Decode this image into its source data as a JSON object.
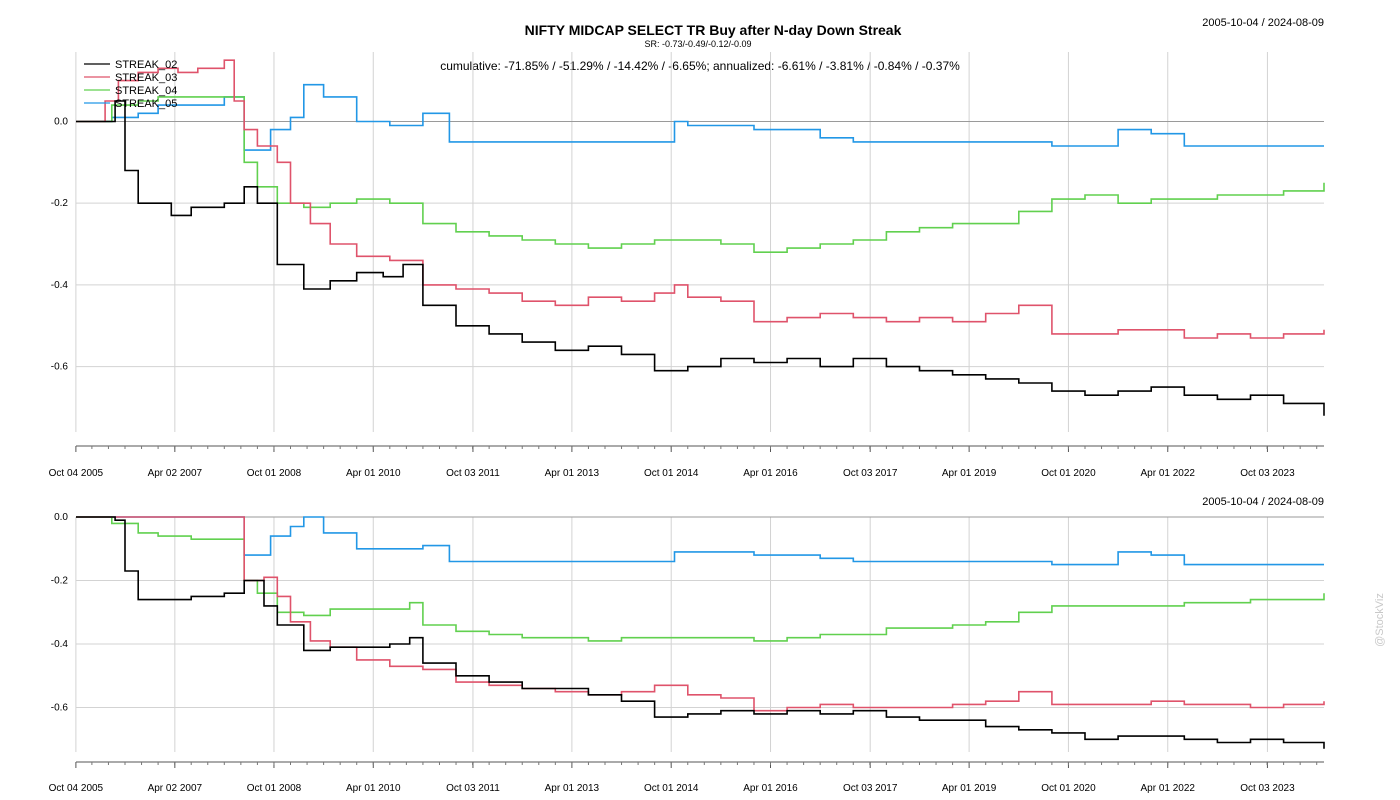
{
  "chart_data": [
    {
      "type": "line",
      "title": "NIFTY MIDCAP SELECT TR Buy after N-day Down Streak",
      "subtitle": "SR: -0.73/-0.49/-0.12/-0.09",
      "annotation": "cumulative: -71.85% / -51.29% / -14.42% / -6.65%; annualized: -6.61% / -3.81% / -0.84% / -0.37%",
      "date_range": "2005-10-04 / 2024-08-09",
      "x_ticks": [
        "Oct 04 2005",
        "Apr 02 2007",
        "Oct 01 2008",
        "Apr 01 2010",
        "Oct 03 2011",
        "Apr 01 2013",
        "Oct 01 2014",
        "Apr 01 2016",
        "Oct 03 2017",
        "Apr 01 2019",
        "Oct 01 2020",
        "Apr 01 2022",
        "Oct 03 2023"
      ],
      "y_ticks": [
        "0.0",
        "-0.2",
        "-0.4",
        "-0.6"
      ],
      "ylim": [
        -0.76,
        0.17
      ],
      "xlim": [
        2005.76,
        2024.61
      ],
      "grid": true,
      "legend_position": "top-left",
      "series": [
        {
          "name": "STREAK_02",
          "color": "#000000",
          "x": [
            2005.76,
            2006.2,
            2006.35,
            2006.5,
            2006.7,
            2007.0,
            2007.2,
            2007.5,
            2008.0,
            2008.3,
            2008.5,
            2008.8,
            2009.2,
            2009.6,
            2010.0,
            2010.4,
            2010.7,
            2011.0,
            2011.5,
            2012.0,
            2012.5,
            2013.0,
            2013.5,
            2014.0,
            2014.5,
            2015.0,
            2015.5,
            2016.0,
            2016.5,
            2017.0,
            2017.5,
            2018.0,
            2018.5,
            2019.0,
            2019.5,
            2020.0,
            2020.5,
            2021.0,
            2021.5,
            2022.0,
            2022.5,
            2023.0,
            2023.5,
            2024.0,
            2024.61
          ],
          "values": [
            0.0,
            0.0,
            0.05,
            -0.12,
            -0.2,
            -0.2,
            -0.23,
            -0.21,
            -0.2,
            -0.16,
            -0.2,
            -0.35,
            -0.41,
            -0.39,
            -0.37,
            -0.38,
            -0.35,
            -0.45,
            -0.5,
            -0.52,
            -0.54,
            -0.56,
            -0.55,
            -0.57,
            -0.61,
            -0.6,
            -0.58,
            -0.59,
            -0.58,
            -0.6,
            -0.58,
            -0.6,
            -0.61,
            -0.62,
            -0.63,
            -0.64,
            -0.66,
            -0.67,
            -0.66,
            -0.65,
            -0.67,
            -0.68,
            -0.67,
            -0.69,
            -0.72
          ]
        },
        {
          "name": "STREAK_03",
          "color": "#df536b",
          "x": [
            2005.76,
            2006.2,
            2006.4,
            2006.7,
            2007.0,
            2007.3,
            2007.6,
            2008.0,
            2008.15,
            2008.3,
            2008.5,
            2008.8,
            2009.0,
            2009.3,
            2009.6,
            2010.0,
            2010.5,
            2010.8,
            2011.0,
            2011.5,
            2012.0,
            2012.5,
            2013.0,
            2013.5,
            2014.0,
            2014.5,
            2014.8,
            2015.0,
            2015.5,
            2016.0,
            2016.5,
            2017.0,
            2017.5,
            2018.0,
            2018.5,
            2019.0,
            2019.5,
            2020.0,
            2020.5,
            2021.0,
            2021.5,
            2022.0,
            2022.5,
            2023.0,
            2023.5,
            2024.0,
            2024.61
          ],
          "values": [
            0.0,
            0.05,
            0.1,
            0.12,
            0.13,
            0.12,
            0.13,
            0.15,
            0.05,
            -0.02,
            -0.06,
            -0.1,
            -0.2,
            -0.25,
            -0.3,
            -0.33,
            -0.34,
            -0.34,
            -0.4,
            -0.41,
            -0.42,
            -0.44,
            -0.45,
            -0.43,
            -0.44,
            -0.42,
            -0.4,
            -0.43,
            -0.44,
            -0.49,
            -0.48,
            -0.47,
            -0.48,
            -0.49,
            -0.48,
            -0.49,
            -0.47,
            -0.45,
            -0.52,
            -0.52,
            -0.51,
            -0.51,
            -0.53,
            -0.52,
            -0.53,
            -0.52,
            -0.51
          ]
        },
        {
          "name": "STREAK_04",
          "color": "#61d04f",
          "x": [
            2005.76,
            2006.3,
            2006.7,
            2007.0,
            2007.5,
            2008.0,
            2008.3,
            2008.5,
            2008.8,
            2009.2,
            2009.6,
            2010.0,
            2010.5,
            2010.8,
            2011.0,
            2011.5,
            2012.0,
            2012.5,
            2013.0,
            2013.5,
            2014.0,
            2014.5,
            2015.0,
            2015.5,
            2016.0,
            2016.5,
            2017.0,
            2017.5,
            2018.0,
            2018.5,
            2019.0,
            2019.5,
            2020.0,
            2020.5,
            2021.0,
            2021.5,
            2022.0,
            2022.5,
            2023.0,
            2023.5,
            2024.0,
            2024.61
          ],
          "values": [
            0.0,
            0.04,
            0.05,
            0.06,
            0.06,
            0.06,
            -0.1,
            -0.16,
            -0.2,
            -0.21,
            -0.2,
            -0.19,
            -0.2,
            -0.2,
            -0.25,
            -0.27,
            -0.28,
            -0.29,
            -0.3,
            -0.31,
            -0.3,
            -0.29,
            -0.29,
            -0.3,
            -0.32,
            -0.31,
            -0.3,
            -0.29,
            -0.27,
            -0.26,
            -0.25,
            -0.25,
            -0.22,
            -0.19,
            -0.18,
            -0.2,
            -0.19,
            -0.19,
            -0.18,
            -0.18,
            -0.17,
            -0.15
          ]
        },
        {
          "name": "STREAK_05",
          "color": "#2297e6",
          "x": [
            2005.76,
            2006.3,
            2006.7,
            2007.0,
            2007.5,
            2008.0,
            2008.3,
            2008.7,
            2009.0,
            2009.2,
            2009.5,
            2010.0,
            2010.5,
            2011.0,
            2011.4,
            2011.8,
            2012.0,
            2012.5,
            2013.0,
            2013.5,
            2014.0,
            2014.3,
            2014.8,
            2015.0,
            2015.5,
            2016.0,
            2016.5,
            2017.0,
            2017.5,
            2018.0,
            2018.5,
            2019.0,
            2019.5,
            2020.0,
            2020.5,
            2021.0,
            2021.5,
            2022.0,
            2022.5,
            2023.0,
            2023.5,
            2024.0,
            2024.61
          ],
          "values": [
            0.0,
            0.01,
            0.02,
            0.04,
            0.04,
            0.06,
            -0.07,
            -0.02,
            0.01,
            0.09,
            0.06,
            0.0,
            -0.01,
            0.02,
            -0.05,
            -0.05,
            -0.05,
            -0.05,
            -0.05,
            -0.05,
            -0.05,
            -0.05,
            0.0,
            -0.01,
            -0.01,
            -0.02,
            -0.02,
            -0.04,
            -0.05,
            -0.05,
            -0.05,
            -0.05,
            -0.05,
            -0.05,
            -0.06,
            -0.06,
            -0.02,
            -0.03,
            -0.06,
            -0.06,
            -0.06,
            -0.06,
            -0.06
          ]
        }
      ]
    },
    {
      "type": "line",
      "date_range": "2005-10-04 / 2024-08-09",
      "x_ticks": [
        "Oct 04 2005",
        "Apr 02 2007",
        "Oct 01 2008",
        "Apr 01 2010",
        "Oct 03 2011",
        "Apr 01 2013",
        "Oct 01 2014",
        "Apr 01 2016",
        "Oct 03 2017",
        "Apr 01 2019",
        "Oct 01 2020",
        "Apr 01 2022",
        "Oct 03 2023"
      ],
      "y_ticks": [
        "0.0",
        "-0.2",
        "-0.4",
        "-0.6"
      ],
      "ylim": [
        -0.74,
        0.0
      ],
      "xlim": [
        2005.76,
        2024.61
      ],
      "grid": true,
      "series": [
        {
          "name": "STREAK_02",
          "color": "#000000",
          "x": [
            2005.76,
            2006.2,
            2006.35,
            2006.5,
            2006.7,
            2007.0,
            2007.5,
            2008.0,
            2008.3,
            2008.6,
            2008.8,
            2009.2,
            2009.6,
            2010.0,
            2010.5,
            2010.8,
            2011.0,
            2011.5,
            2012.0,
            2012.5,
            2013.0,
            2013.5,
            2014.0,
            2014.5,
            2015.0,
            2015.5,
            2016.0,
            2016.5,
            2017.0,
            2017.5,
            2018.0,
            2018.5,
            2019.0,
            2019.5,
            2020.0,
            2020.5,
            2021.0,
            2021.5,
            2022.0,
            2022.5,
            2023.0,
            2023.5,
            2024.0,
            2024.61
          ],
          "values": [
            0.0,
            0.0,
            -0.01,
            -0.17,
            -0.26,
            -0.26,
            -0.25,
            -0.24,
            -0.2,
            -0.28,
            -0.34,
            -0.42,
            -0.41,
            -0.41,
            -0.4,
            -0.38,
            -0.46,
            -0.5,
            -0.52,
            -0.54,
            -0.54,
            -0.56,
            -0.58,
            -0.63,
            -0.62,
            -0.61,
            -0.62,
            -0.61,
            -0.62,
            -0.61,
            -0.63,
            -0.64,
            -0.64,
            -0.66,
            -0.67,
            -0.68,
            -0.7,
            -0.69,
            -0.69,
            -0.7,
            -0.71,
            -0.7,
            -0.71,
            -0.73
          ]
        },
        {
          "name": "STREAK_03",
          "color": "#df536b",
          "x": [
            2005.76,
            2006.3,
            2006.7,
            2007.0,
            2007.5,
            2008.0,
            2008.3,
            2008.6,
            2008.8,
            2009.0,
            2009.3,
            2009.6,
            2010.0,
            2010.5,
            2010.8,
            2011.0,
            2011.5,
            2012.0,
            2012.5,
            2013.0,
            2013.5,
            2014.0,
            2014.5,
            2015.0,
            2015.5,
            2016.0,
            2016.5,
            2017.0,
            2017.5,
            2018.0,
            2018.5,
            2019.0,
            2019.5,
            2020.0,
            2020.5,
            2021.0,
            2021.5,
            2022.0,
            2022.5,
            2023.0,
            2023.5,
            2024.0,
            2024.61
          ],
          "values": [
            0.0,
            0.0,
            0.0,
            0.0,
            0.0,
            0.0,
            -0.2,
            -0.19,
            -0.25,
            -0.33,
            -0.39,
            -0.41,
            -0.45,
            -0.47,
            -0.47,
            -0.48,
            -0.52,
            -0.53,
            -0.54,
            -0.55,
            -0.56,
            -0.55,
            -0.53,
            -0.56,
            -0.57,
            -0.61,
            -0.6,
            -0.59,
            -0.6,
            -0.6,
            -0.6,
            -0.59,
            -0.58,
            -0.55,
            -0.59,
            -0.59,
            -0.59,
            -0.58,
            -0.59,
            -0.59,
            -0.6,
            -0.59,
            -0.58
          ]
        },
        {
          "name": "STREAK_04",
          "color": "#61d04f",
          "x": [
            2005.76,
            2006.3,
            2006.7,
            2007.0,
            2007.5,
            2008.0,
            2008.3,
            2008.5,
            2008.8,
            2009.2,
            2009.6,
            2010.0,
            2010.5,
            2010.8,
            2011.0,
            2011.5,
            2012.0,
            2012.5,
            2013.0,
            2013.5,
            2014.0,
            2014.5,
            2015.0,
            2015.5,
            2016.0,
            2016.5,
            2017.0,
            2017.5,
            2018.0,
            2018.5,
            2019.0,
            2019.5,
            2020.0,
            2020.5,
            2021.0,
            2021.5,
            2022.0,
            2022.5,
            2023.0,
            2023.5,
            2024.0,
            2024.61
          ],
          "values": [
            0.0,
            -0.02,
            -0.05,
            -0.06,
            -0.07,
            -0.07,
            -0.2,
            -0.24,
            -0.3,
            -0.31,
            -0.29,
            -0.29,
            -0.29,
            -0.27,
            -0.34,
            -0.36,
            -0.37,
            -0.38,
            -0.38,
            -0.39,
            -0.38,
            -0.38,
            -0.38,
            -0.38,
            -0.39,
            -0.38,
            -0.37,
            -0.37,
            -0.35,
            -0.35,
            -0.34,
            -0.33,
            -0.3,
            -0.28,
            -0.28,
            -0.28,
            -0.28,
            -0.27,
            -0.27,
            -0.26,
            -0.26,
            -0.24
          ]
        },
        {
          "name": "STREAK_05",
          "color": "#2297e6",
          "x": [
            2005.76,
            2006.3,
            2006.7,
            2007.0,
            2007.5,
            2008.0,
            2008.3,
            2008.7,
            2009.0,
            2009.2,
            2009.5,
            2010.0,
            2010.5,
            2011.0,
            2011.4,
            2011.8,
            2012.0,
            2012.5,
            2013.0,
            2013.5,
            2014.0,
            2014.3,
            2014.8,
            2015.0,
            2015.5,
            2016.0,
            2016.5,
            2017.0,
            2017.5,
            2018.0,
            2018.5,
            2019.0,
            2019.5,
            2020.0,
            2020.5,
            2021.0,
            2021.5,
            2022.0,
            2022.5,
            2023.0,
            2023.5,
            2024.0,
            2024.61
          ],
          "values": [
            0.0,
            0.0,
            0.0,
            0.0,
            0.0,
            0.0,
            -0.12,
            -0.06,
            -0.03,
            0.0,
            -0.05,
            -0.1,
            -0.1,
            -0.09,
            -0.14,
            -0.14,
            -0.14,
            -0.14,
            -0.14,
            -0.14,
            -0.14,
            -0.14,
            -0.11,
            -0.11,
            -0.11,
            -0.12,
            -0.12,
            -0.13,
            -0.14,
            -0.14,
            -0.14,
            -0.14,
            -0.14,
            -0.14,
            -0.15,
            -0.15,
            -0.11,
            -0.12,
            -0.15,
            -0.15,
            -0.15,
            -0.15,
            -0.15
          ]
        }
      ]
    }
  ],
  "watermark": "@StockViz"
}
